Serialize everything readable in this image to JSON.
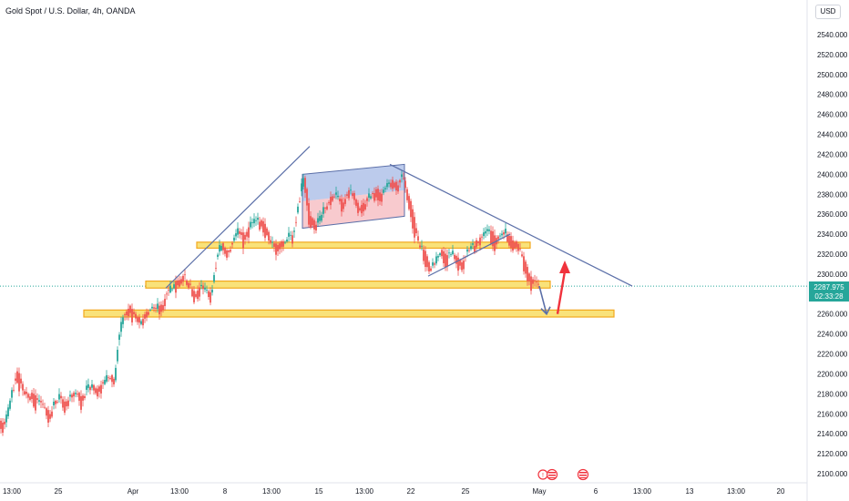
{
  "header": {
    "symbol_title": "Gold Spot / U.S. Dollar, 4h, OANDA",
    "currency_button": "USD"
  },
  "price_tag": {
    "price": "2287.975",
    "countdown": "02:33:28"
  },
  "colors": {
    "up": "#26a69a",
    "down": "#ef5350",
    "trendline": "#5b6fa8",
    "zone_fill": "#f9e27a",
    "zone_border": "#f2a81d",
    "flag_top": "#8fa8e0",
    "flag_bottom": "#f4a6ad",
    "arrow_red": "#f0323c",
    "arrow_blue": "#5b6fa8",
    "current_line": "#26a69a"
  },
  "chart_data": {
    "type": "candlestick",
    "title": "Gold Spot / U.S. Dollar, 4h, OANDA",
    "ylim": [
      2100,
      2560
    ],
    "y_ticks": [
      "2540.000",
      "2520.000",
      "2500.000",
      "2480.000",
      "2460.000",
      "2440.000",
      "2420.000",
      "2400.000",
      "2380.000",
      "2360.000",
      "2340.000",
      "2320.000",
      "2300.000",
      "2280.000",
      "2260.000",
      "2240.000",
      "2220.000",
      "2200.000",
      "2180.000",
      "2160.000",
      "2140.000",
      "2120.000",
      "2100.000"
    ],
    "x_ticks": [
      "13:00",
      "25",
      "Apr",
      "13:00",
      "8",
      "13:00",
      "15",
      "13:00",
      "22",
      "25",
      "May",
      "6",
      "13:00",
      "13",
      "13:00",
      "20"
    ],
    "last_price": 2287.975,
    "close_path": [
      [
        0,
        2152
      ],
      [
        6,
        2150
      ],
      [
        12,
        2175
      ],
      [
        18,
        2205
      ],
      [
        24,
        2188
      ],
      [
        30,
        2178
      ],
      [
        36,
        2182
      ],
      [
        42,
        2172
      ],
      [
        48,
        2168
      ],
      [
        54,
        2160
      ],
      [
        60,
        2172
      ],
      [
        66,
        2176
      ],
      [
        72,
        2172
      ],
      [
        78,
        2178
      ],
      [
        84,
        2181
      ],
      [
        90,
        2176
      ],
      [
        96,
        2185
      ],
      [
        102,
        2188
      ],
      [
        108,
        2185
      ],
      [
        114,
        2192
      ],
      [
        120,
        2198
      ],
      [
        126,
        2195
      ],
      [
        130,
        2232
      ],
      [
        136,
        2258
      ],
      [
        142,
        2268
      ],
      [
        148,
        2260
      ],
      [
        154,
        2252
      ],
      [
        160,
        2262
      ],
      [
        166,
        2268
      ],
      [
        172,
        2265
      ],
      [
        178,
        2270
      ],
      [
        184,
        2282
      ],
      [
        190,
        2288
      ],
      [
        196,
        2296
      ],
      [
        202,
        2298
      ],
      [
        208,
        2290
      ],
      [
        214,
        2282
      ],
      [
        220,
        2288
      ],
      [
        226,
        2284
      ],
      [
        232,
        2282
      ],
      [
        238,
        2318
      ],
      [
        244,
        2330
      ],
      [
        250,
        2322
      ],
      [
        256,
        2335
      ],
      [
        262,
        2342
      ],
      [
        268,
        2338
      ],
      [
        274,
        2348
      ],
      [
        280,
        2352
      ],
      [
        286,
        2355
      ],
      [
        292,
        2348
      ],
      [
        298,
        2330
      ],
      [
        304,
        2328
      ],
      [
        310,
        2332
      ],
      [
        316,
        2336
      ],
      [
        322,
        2340
      ],
      [
        328,
        2375
      ],
      [
        334,
        2395
      ],
      [
        340,
        2360
      ],
      [
        346,
        2350
      ],
      [
        352,
        2355
      ],
      [
        358,
        2370
      ],
      [
        364,
        2380
      ],
      [
        370,
        2378
      ],
      [
        376,
        2372
      ],
      [
        382,
        2385
      ],
      [
        388,
        2380
      ],
      [
        394,
        2368
      ],
      [
        400,
        2372
      ],
      [
        406,
        2378
      ],
      [
        412,
        2385
      ],
      [
        418,
        2380
      ],
      [
        424,
        2388
      ],
      [
        430,
        2395
      ],
      [
        436,
        2390
      ],
      [
        442,
        2398
      ],
      [
        448,
        2380
      ],
      [
        454,
        2355
      ],
      [
        460,
        2330
      ],
      [
        466,
        2322
      ],
      [
        472,
        2308
      ],
      [
        478,
        2312
      ],
      [
        484,
        2325
      ],
      [
        490,
        2318
      ],
      [
        496,
        2322
      ],
      [
        502,
        2315
      ],
      [
        508,
        2312
      ],
      [
        514,
        2325
      ],
      [
        520,
        2330
      ],
      [
        526,
        2335
      ],
      [
        532,
        2340
      ],
      [
        538,
        2345
      ],
      [
        544,
        2335
      ],
      [
        550,
        2340
      ],
      [
        556,
        2342
      ],
      [
        562,
        2335
      ],
      [
        568,
        2330
      ],
      [
        574,
        2318
      ],
      [
        580,
        2300
      ],
      [
        586,
        2292
      ],
      [
        592,
        2288
      ]
    ],
    "trendlines": [
      {
        "from": [
          182,
          2286
        ],
        "to": [
          340,
          2428
        ]
      },
      {
        "from": [
          428,
          2410
        ],
        "to": [
          694,
          2288
        ]
      },
      {
        "from": [
          470,
          2298
        ],
        "to": [
          560,
          2340
        ]
      }
    ],
    "zones": [
      {
        "x_from": 216,
        "x_to": 582,
        "y_low": 2326,
        "y_high": 2332
      },
      {
        "x_from": 160,
        "x_to": 604,
        "y_low": 2286,
        "y_high": 2293
      },
      {
        "x_from": 92,
        "x_to": 674,
        "y_low": 2257,
        "y_high": 2264
      }
    ],
    "flag": {
      "top": [
        [
          332,
          2400
        ],
        [
          444,
          2410
        ]
      ],
      "bottom": [
        [
          332,
          2346
        ],
        [
          444,
          2358
        ]
      ]
    },
    "projection_down_target": 2260,
    "projection_up_target": 2310,
    "grid": false
  }
}
